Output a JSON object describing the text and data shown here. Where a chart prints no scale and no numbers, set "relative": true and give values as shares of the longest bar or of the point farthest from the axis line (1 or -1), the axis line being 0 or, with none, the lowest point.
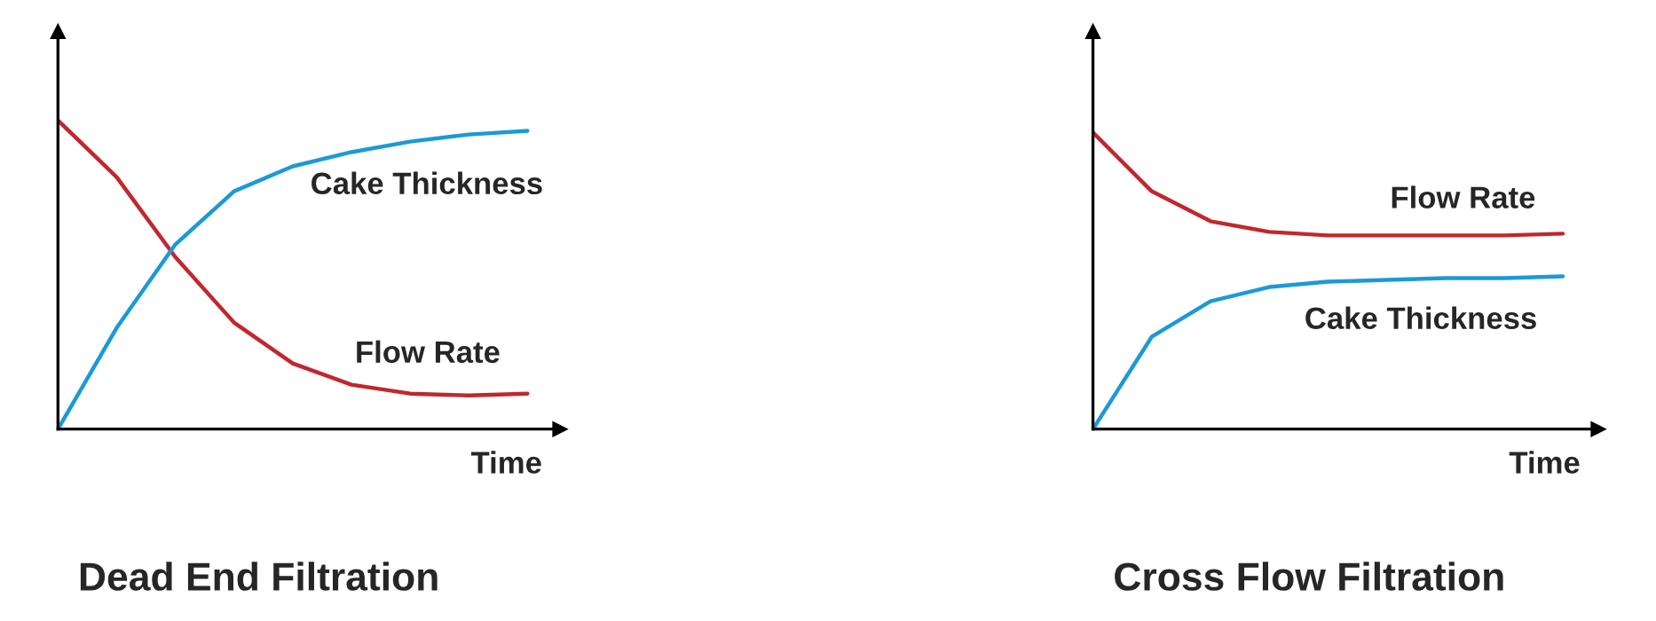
{
  "chart_data": [
    {
      "type": "line",
      "relative": true,
      "title": "Dead End Filtration",
      "xlabel": "Time",
      "tick_labels": false,
      "categories": [
        null,
        null,
        null,
        null,
        null,
        null,
        null,
        null,
        null
      ],
      "series": [
        {
          "name": "Flow Rate",
          "color": "#c1272d",
          "values": [
            1,
            0.816,
            0.557,
            0.345,
            0.213,
            0.144,
            0.115,
            0.109,
            0.115
          ]
        },
        {
          "name": "Cake Thickness",
          "color": "#1b9ad6",
          "values": [
            0,
            0.328,
            0.598,
            0.77,
            0.851,
            0.897,
            0.931,
            0.954,
            0.966
          ]
        }
      ]
    },
    {
      "type": "line",
      "relative": true,
      "title": "Cross Flow Filtration",
      "xlabel": "Time",
      "tick_labels": false,
      "categories": [
        null,
        null,
        null,
        null,
        null,
        null,
        null,
        null,
        null
      ],
      "series": [
        {
          "name": "Flow Rate",
          "color": "#c1272d",
          "values": [
            1,
            0.802,
            0.701,
            0.665,
            0.653,
            0.653,
            0.653,
            0.653,
            0.659
          ]
        },
        {
          "name": "Cake Thickness",
          "color": "#1b9ad6",
          "values": [
            0,
            0.311,
            0.431,
            0.479,
            0.497,
            0.503,
            0.509,
            0.509,
            0.515
          ]
        }
      ]
    }
  ]
}
